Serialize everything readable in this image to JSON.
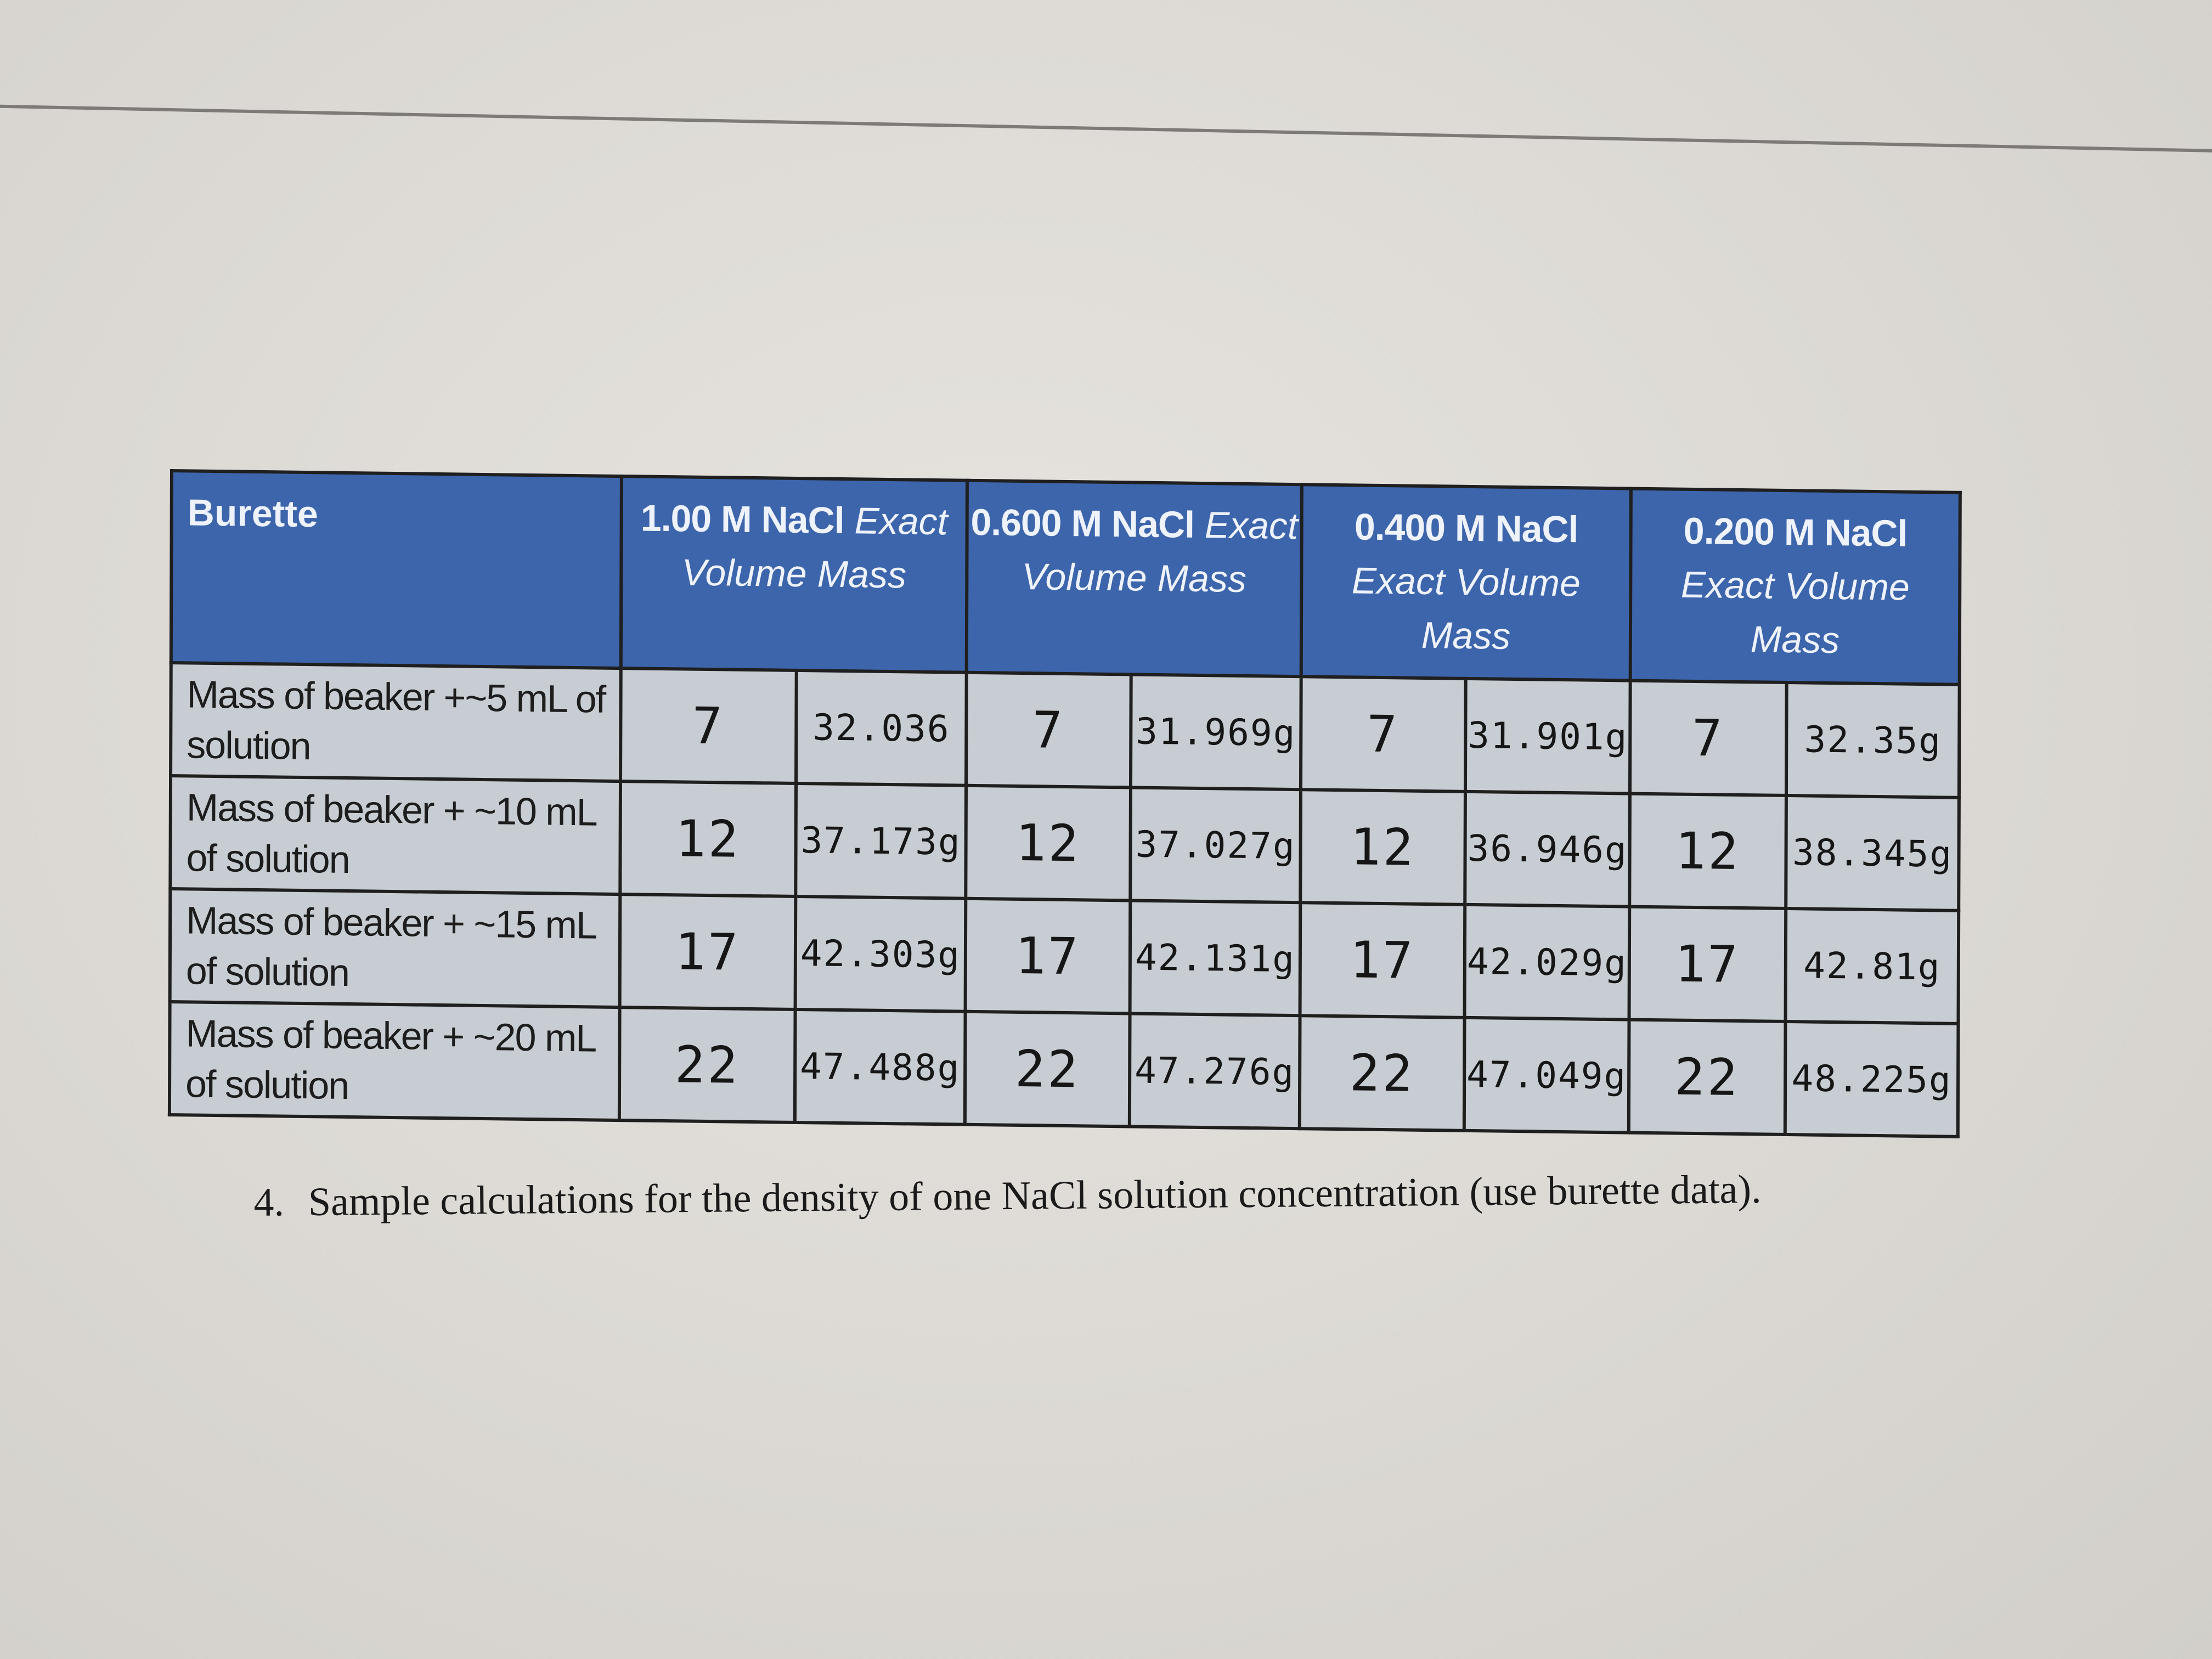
{
  "table": {
    "corner_label": "Burette",
    "columns": [
      {
        "concentration": "1.00 M NaCl",
        "caption": "Exact Volume Mass"
      },
      {
        "concentration": "0.600 M NaCl",
        "caption": "Exact Volume Mass"
      },
      {
        "concentration": "0.400 M NaCl",
        "caption": "Exact Volume Mass"
      },
      {
        "concentration": "0.200 M NaCl",
        "caption": "Exact Volume Mass"
      }
    ],
    "rows": [
      {
        "label": "Mass of beaker +~5 mL of solution",
        "cells": [
          {
            "volume": "7",
            "mass": "32.036"
          },
          {
            "volume": "7",
            "mass": "31.969g"
          },
          {
            "volume": "7",
            "mass": "31.901g"
          },
          {
            "volume": "7",
            "mass": "32.35g"
          }
        ]
      },
      {
        "label": "Mass of beaker + ~10 mL of solution",
        "cells": [
          {
            "volume": "12",
            "mass": "37.173g"
          },
          {
            "volume": "12",
            "mass": "37.027g"
          },
          {
            "volume": "12",
            "mass": "36.946g"
          },
          {
            "volume": "12",
            "mass": "38.345g"
          }
        ]
      },
      {
        "label": "Mass of beaker + ~15 mL of solution",
        "cells": [
          {
            "volume": "17",
            "mass": "42.303g"
          },
          {
            "volume": "17",
            "mass": "42.131g"
          },
          {
            "volume": "17",
            "mass": "42.029g"
          },
          {
            "volume": "17",
            "mass": "42.81g"
          }
        ]
      },
      {
        "label": "Mass of beaker + ~20 mL of solution",
        "cells": [
          {
            "volume": "22",
            "mass": "47.488g"
          },
          {
            "volume": "22",
            "mass": "47.276g"
          },
          {
            "volume": "22",
            "mass": "47.049g"
          },
          {
            "volume": "22",
            "mass": "48.225g"
          }
        ]
      }
    ]
  },
  "question": {
    "number": "4.",
    "text": "Sample calculations for the density of one NaCl solution concentration (use burette data)."
  }
}
